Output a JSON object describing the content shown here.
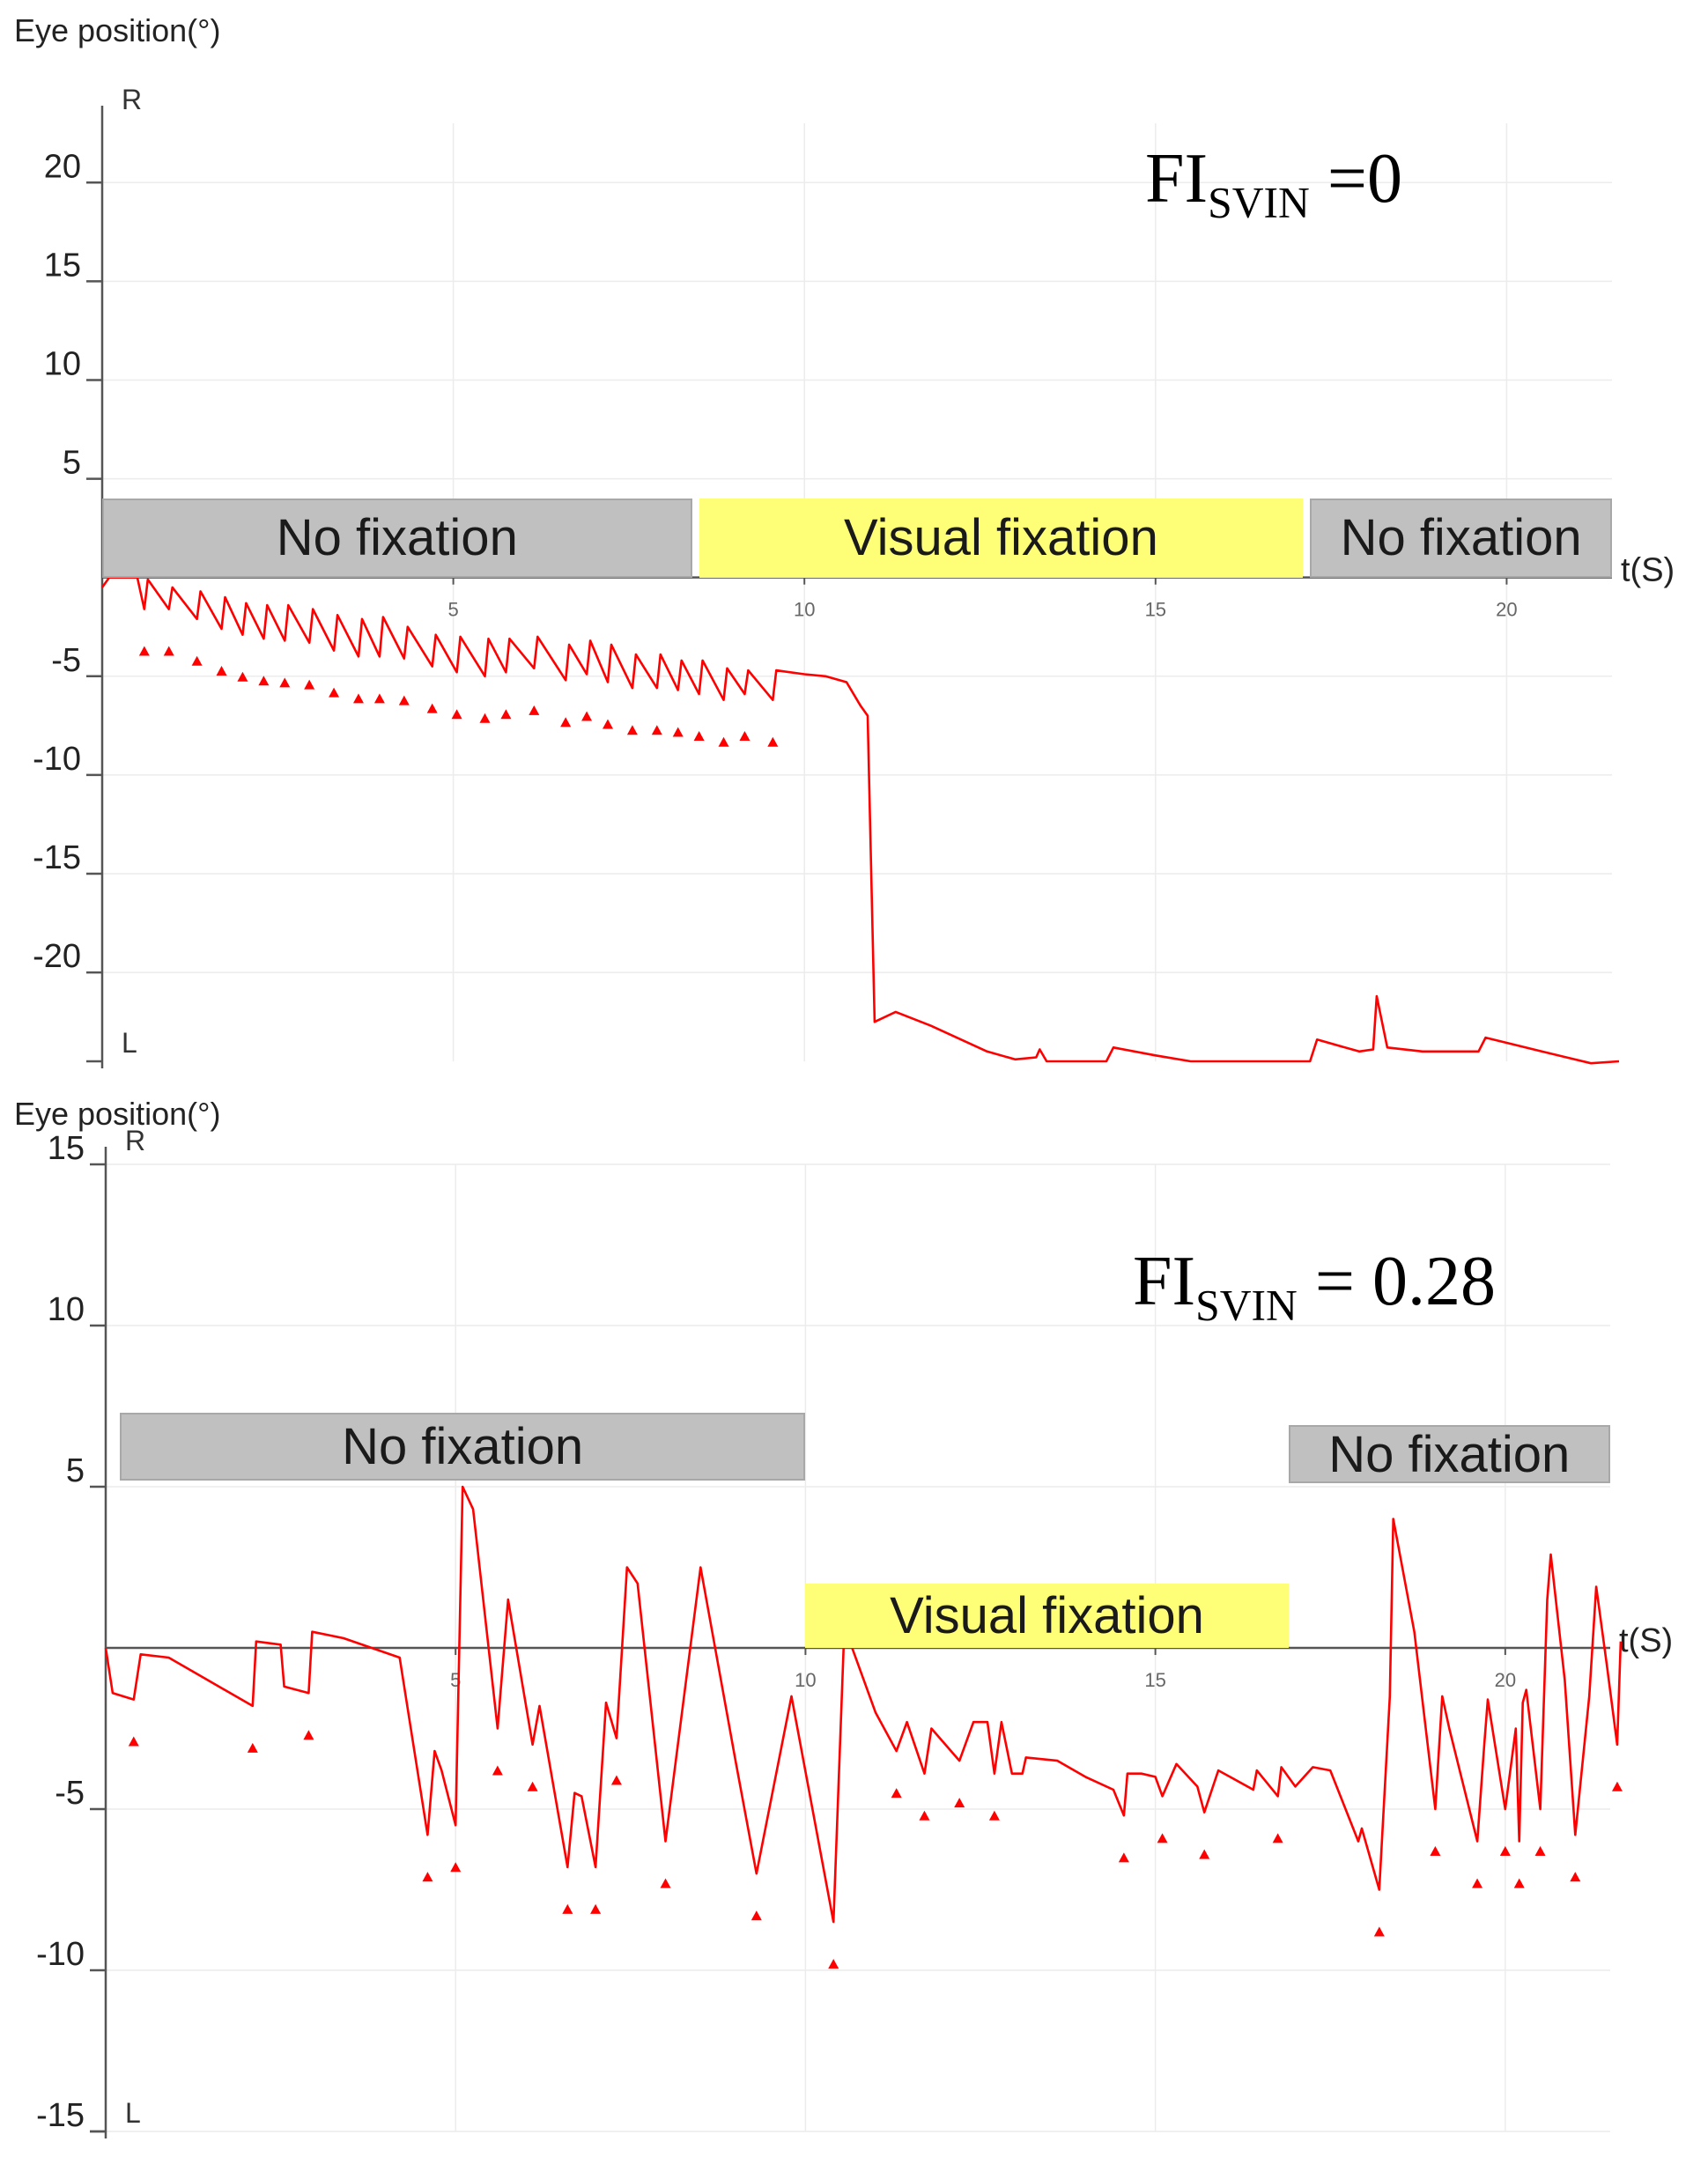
{
  "chart_data": [
    {
      "type": "line",
      "ylabel": "Eye position(°)",
      "xlabel": "t(S)",
      "annotation": "FI",
      "annotation_sub": "SVIN",
      "annotation_value": " =0",
      "direction_top": "R",
      "direction_bottom": "L",
      "ylim": [
        -24.5,
        23
      ],
      "xlim": [
        0,
        21.5
      ],
      "y_ticks": [
        20,
        15,
        10,
        5,
        -5,
        -10,
        -15,
        -20
      ],
      "x_ticks": [
        5,
        10,
        15,
        20
      ],
      "bands": [
        {
          "label": "No fixation",
          "x_start": 0,
          "x_end": 8.4,
          "y_top": 4,
          "y_bottom": 0,
          "color": "#c0c0c0"
        },
        {
          "label": "Visual fixation",
          "x_start": 8.5,
          "x_end": 17.1,
          "y_top": 4,
          "y_bottom": 0,
          "color": "#ffff77"
        },
        {
          "label": "No fixation",
          "x_start": 17.2,
          "x_end": 21.5,
          "y_top": 4,
          "y_bottom": 0,
          "color": "#c0c0c0"
        }
      ],
      "series": [
        {
          "color": "#ff0000",
          "points": [
            [
              0,
              -0.5
            ],
            [
              0.1,
              0
            ],
            [
              0.5,
              0
            ],
            [
              0.6,
              -1.6
            ],
            [
              0.65,
              -0.1
            ],
            [
              0.95,
              -1.6
            ],
            [
              1.0,
              -0.5
            ],
            [
              1.35,
              -2.1
            ],
            [
              1.4,
              -0.7
            ],
            [
              1.7,
              -2.6
            ],
            [
              1.75,
              -1.0
            ],
            [
              2.0,
              -2.9
            ],
            [
              2.05,
              -1.3
            ],
            [
              2.3,
              -3.1
            ],
            [
              2.35,
              -1.4
            ],
            [
              2.6,
              -3.2
            ],
            [
              2.65,
              -1.4
            ],
            [
              2.95,
              -3.3
            ],
            [
              3.0,
              -1.6
            ],
            [
              3.3,
              -3.7
            ],
            [
              3.35,
              -1.9
            ],
            [
              3.65,
              -4.0
            ],
            [
              3.7,
              -2.1
            ],
            [
              3.95,
              -4.0
            ],
            [
              4.0,
              -2.0
            ],
            [
              4.3,
              -4.1
            ],
            [
              4.35,
              -2.5
            ],
            [
              4.7,
              -4.5
            ],
            [
              4.75,
              -2.9
            ],
            [
              5.05,
              -4.8
            ],
            [
              5.1,
              -3.0
            ],
            [
              5.45,
              -5.0
            ],
            [
              5.5,
              -3.1
            ],
            [
              5.75,
              -4.8
            ],
            [
              5.8,
              -3.1
            ],
            [
              6.15,
              -4.6
            ],
            [
              6.2,
              -3.0
            ],
            [
              6.6,
              -5.2
            ],
            [
              6.65,
              -3.4
            ],
            [
              6.9,
              -4.9
            ],
            [
              6.95,
              -3.2
            ],
            [
              7.2,
              -5.3
            ],
            [
              7.25,
              -3.4
            ],
            [
              7.55,
              -5.6
            ],
            [
              7.6,
              -3.9
            ],
            [
              7.9,
              -5.6
            ],
            [
              7.95,
              -3.9
            ],
            [
              8.2,
              -5.7
            ],
            [
              8.25,
              -4.2
            ],
            [
              8.5,
              -5.9
            ],
            [
              8.55,
              -4.2
            ],
            [
              8.85,
              -6.2
            ],
            [
              8.9,
              -4.6
            ],
            [
              9.15,
              -5.9
            ],
            [
              9.2,
              -4.7
            ],
            [
              9.55,
              -6.2
            ],
            [
              9.6,
              -4.7
            ],
            [
              10.0,
              -4.9
            ],
            [
              10.3,
              -5.0
            ],
            [
              10.6,
              -5.3
            ],
            [
              10.8,
              -6.5
            ],
            [
              10.9,
              -7.0
            ],
            [
              11.0,
              -22.5
            ],
            [
              11.3,
              -22.0
            ],
            [
              11.8,
              -22.7
            ],
            [
              12.6,
              -24.0
            ],
            [
              13.0,
              -24.4
            ],
            [
              13.3,
              -24.3
            ],
            [
              13.35,
              -23.9
            ],
            [
              13.45,
              -24.5
            ],
            [
              14.3,
              -24.5
            ],
            [
              14.4,
              -23.8
            ],
            [
              15.0,
              -24.2
            ],
            [
              15.5,
              -24.5
            ],
            [
              17.2,
              -24.5
            ],
            [
              17.3,
              -23.4
            ],
            [
              17.9,
              -24.0
            ],
            [
              18.1,
              -23.9
            ],
            [
              18.15,
              -21.2
            ],
            [
              18.3,
              -23.8
            ],
            [
              18.8,
              -24.0
            ],
            [
              19.6,
              -24.0
            ],
            [
              19.7,
              -23.3
            ],
            [
              20.5,
              -24.0
            ],
            [
              21.2,
              -24.6
            ],
            [
              21.6,
              -24.5
            ]
          ]
        }
      ]
    },
    {
      "type": "line",
      "ylabel": "Eye position(°)",
      "xlabel": "t(S)",
      "annotation": "FI",
      "annotation_sub": "SVIN",
      "annotation_value": " = 0.28",
      "direction_top": "R",
      "direction_bottom": "L",
      "ylim": [
        -15,
        15
      ],
      "xlim": [
        0,
        21.5
      ],
      "y_ticks": [
        15,
        10,
        5,
        -5,
        -10,
        -15
      ],
      "x_ticks": [
        5,
        10,
        15,
        20
      ],
      "bands": [
        {
          "label": "No fixation",
          "x_start": 0.2,
          "x_end": 10.0,
          "y_top": 7.3,
          "y_bottom": 5.2,
          "color": "#c0c0c0"
        },
        {
          "label": "Visual fixation",
          "x_start": 10.0,
          "x_end": 16.9,
          "y_top": 2.0,
          "y_bottom": 0.0,
          "color": "#ffff77"
        },
        {
          "label": "No fixation",
          "x_start": 16.9,
          "x_end": 21.5,
          "y_top": 6.9,
          "y_bottom": 5.1,
          "color": "#c0c0c0"
        }
      ],
      "series": [
        {
          "color": "#ff0000",
          "points": [
            [
              0,
              0
            ],
            [
              0.1,
              -1.4
            ],
            [
              0.4,
              -1.6
            ],
            [
              0.5,
              -0.2
            ],
            [
              0.9,
              -0.3
            ],
            [
              2.1,
              -1.8
            ],
            [
              2.15,
              0.2
            ],
            [
              2.5,
              0.1
            ],
            [
              2.55,
              -1.2
            ],
            [
              2.9,
              -1.4
            ],
            [
              2.95,
              0.5
            ],
            [
              3.4,
              0.3
            ],
            [
              4.2,
              -0.3
            ],
            [
              4.6,
              -5.8
            ],
            [
              4.7,
              -3.2
            ],
            [
              4.8,
              -3.8
            ],
            [
              5.0,
              -5.5
            ],
            [
              5.1,
              5.0
            ],
            [
              5.25,
              4.3
            ],
            [
              5.6,
              -2.5
            ],
            [
              5.75,
              1.5
            ],
            [
              6.1,
              -3.0
            ],
            [
              6.2,
              -1.8
            ],
            [
              6.6,
              -6.8
            ],
            [
              6.7,
              -4.5
            ],
            [
              6.8,
              -4.6
            ],
            [
              7.0,
              -6.8
            ],
            [
              7.15,
              -1.7
            ],
            [
              7.3,
              -2.8
            ],
            [
              7.45,
              2.5
            ],
            [
              7.6,
              2.0
            ],
            [
              8.0,
              -6.0
            ],
            [
              8.5,
              2.5
            ],
            [
              9.0,
              -3.5
            ],
            [
              9.3,
              -7.0
            ],
            [
              9.8,
              -1.5
            ],
            [
              10.4,
              -8.5
            ],
            [
              10.55,
              0.3
            ],
            [
              10.6,
              0.4
            ],
            [
              11.0,
              -2.0
            ],
            [
              11.3,
              -3.2
            ],
            [
              11.45,
              -2.3
            ],
            [
              11.7,
              -3.9
            ],
            [
              11.8,
              -2.5
            ],
            [
              12.2,
              -3.5
            ],
            [
              12.4,
              -2.3
            ],
            [
              12.6,
              -2.3
            ],
            [
              12.7,
              -3.9
            ],
            [
              12.8,
              -2.3
            ],
            [
              12.95,
              -3.9
            ],
            [
              13.1,
              -3.9
            ],
            [
              13.15,
              -3.4
            ],
            [
              13.6,
              -3.5
            ],
            [
              14.0,
              -4.0
            ],
            [
              14.4,
              -4.4
            ],
            [
              14.55,
              -5.2
            ],
            [
              14.6,
              -3.9
            ],
            [
              14.8,
              -3.9
            ],
            [
              15.0,
              -4.0
            ],
            [
              15.1,
              -4.6
            ],
            [
              15.3,
              -3.6
            ],
            [
              15.6,
              -4.3
            ],
            [
              15.7,
              -5.1
            ],
            [
              15.9,
              -3.8
            ],
            [
              16.4,
              -4.4
            ],
            [
              16.45,
              -3.8
            ],
            [
              16.75,
              -4.6
            ],
            [
              16.8,
              -3.7
            ],
            [
              17.0,
              -4.3
            ],
            [
              17.25,
              -3.7
            ],
            [
              17.5,
              -3.8
            ],
            [
              17.9,
              -6.0
            ],
            [
              17.95,
              -5.6
            ],
            [
              18.2,
              -7.5
            ],
            [
              18.35,
              -1.5
            ],
            [
              18.4,
              4.0
            ],
            [
              18.7,
              0.5
            ],
            [
              19.0,
              -5.0
            ],
            [
              19.1,
              -1.5
            ],
            [
              19.2,
              -2.5
            ],
            [
              19.6,
              -6.0
            ],
            [
              19.7,
              -3.0
            ],
            [
              19.75,
              -1.6
            ],
            [
              20.0,
              -5.0
            ],
            [
              20.15,
              -2.5
            ],
            [
              20.2,
              -6.0
            ],
            [
              20.25,
              -1.7
            ],
            [
              20.3,
              -1.3
            ],
            [
              20.5,
              -5.0
            ],
            [
              20.6,
              1.5
            ],
            [
              20.65,
              2.9
            ],
            [
              20.85,
              -1.0
            ],
            [
              21.0,
              -5.8
            ],
            [
              21.2,
              -1.5
            ],
            [
              21.3,
              1.9
            ],
            [
              21.45,
              -0.5
            ],
            [
              21.6,
              -3.0
            ],
            [
              21.65,
              0.2
            ]
          ]
        }
      ]
    }
  ]
}
